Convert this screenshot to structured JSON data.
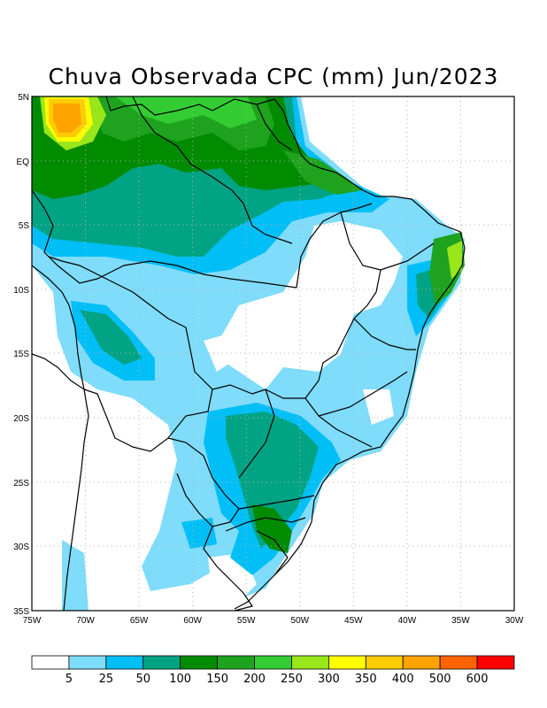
{
  "title": "Chuva Observada CPC (mm) Jun/2023",
  "map": {
    "lat_ticks": [
      "5N",
      "EQ",
      "5S",
      "10S",
      "15S",
      "20S",
      "25S",
      "30S",
      "35S"
    ],
    "lon_ticks": [
      "75W",
      "70W",
      "65W",
      "60W",
      "55W",
      "50W",
      "45W",
      "40W",
      "35W",
      "30W"
    ],
    "lat_range": [
      5,
      -35
    ],
    "lon_range": [
      -75,
      -30
    ]
  },
  "colorbar": {
    "labels": [
      "5",
      "25",
      "50",
      "100",
      "150",
      "200",
      "250",
      "300",
      "350",
      "400",
      "500",
      "600"
    ],
    "colors": [
      "#ffffff",
      "#7fdcfa",
      "#00bff7",
      "#00a383",
      "#008b00",
      "#1fa31f",
      "#33cc33",
      "#99e61a",
      "#ffff00",
      "#ffcc00",
      "#ffa300",
      "#ff6400",
      "#ff0000"
    ]
  }
}
